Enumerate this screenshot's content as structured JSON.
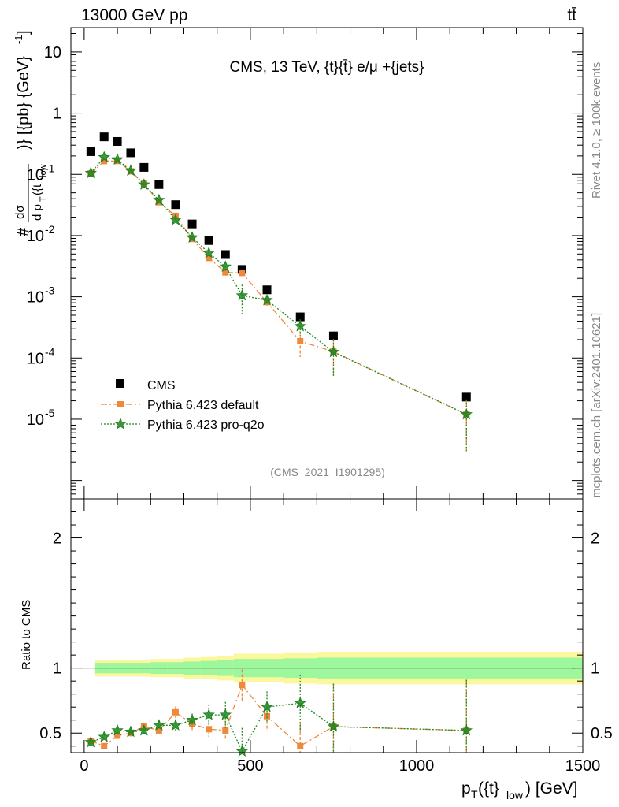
{
  "header": {
    "left": "13000 GeV pp",
    "right": "tt̄"
  },
  "side": {
    "rivet": "Rivet 4.1.0, ≥ 100k events",
    "mcplots": "mcplots.cern.ch [arXiv:2401.10621]"
  },
  "chart_data": {
    "type": "scatter",
    "title": "CMS, 13 TeV, {t}{t̄} e/μ +{jets}",
    "watermark": "(CMS_2021_I1901295)",
    "xlabel": "p_T({t}_low) [GeV]",
    "ylabel_main": "# dσ / d p_T({t_low})} [{pb} {GeV}^-1]",
    "ylabel_ratio": "Ratio to CMS",
    "xlim": [
      -40,
      1500
    ],
    "ylim_main": [
      5e-07,
      25
    ],
    "ylim_ratio": [
      0.35,
      2.3
    ],
    "x_ticks": [
      0,
      500,
      1000,
      1500
    ],
    "y_ticks_main": [
      {
        "value": 10,
        "mantissa": "10",
        "exp": ""
      },
      {
        "value": 1,
        "mantissa": "1",
        "exp": ""
      },
      {
        "value": 0.1,
        "mantissa": "10",
        "exp": "-1"
      },
      {
        "value": 0.01,
        "mantissa": "10",
        "exp": "-2"
      },
      {
        "value": 0.001,
        "mantissa": "10",
        "exp": "-3"
      },
      {
        "value": 0.0001,
        "mantissa": "10",
        "exp": "-4"
      },
      {
        "value": 1e-05,
        "mantissa": "10",
        "exp": "-5"
      }
    ],
    "y_ticks_ratio": [
      {
        "value": 0.5,
        "label": "0.5"
      },
      {
        "value": 1,
        "label": "1"
      },
      {
        "value": 2,
        "label": "2"
      }
    ],
    "bin_edges": [
      0,
      40,
      80,
      120,
      160,
      200,
      250,
      300,
      350,
      400,
      450,
      500,
      600,
      700,
      800,
      1500
    ],
    "bin_centers": [
      20,
      60,
      100,
      140,
      180,
      225,
      275,
      325,
      375,
      425,
      475,
      550,
      650,
      750,
      1150
    ],
    "band_inner": [
      0.04,
      0.04,
      0.04,
      0.04,
      0.04,
      0.045,
      0.045,
      0.05,
      0.055,
      0.06,
      0.07,
      0.07,
      0.075,
      0.08,
      0.08
    ],
    "band_outer": [
      0.065,
      0.065,
      0.065,
      0.065,
      0.065,
      0.07,
      0.07,
      0.08,
      0.085,
      0.095,
      0.11,
      0.11,
      0.12,
      0.125,
      0.125
    ],
    "series": [
      {
        "name": "CMS",
        "color": "#000000",
        "marker": "square",
        "values": [
          0.235,
          0.41,
          0.345,
          0.225,
          0.13,
          0.068,
          0.032,
          0.0155,
          0.0083,
          0.0049,
          0.0028,
          0.0013,
          0.00047,
          0.00023,
          2.3e-05
        ]
      },
      {
        "name": "Pythia 6.423 default",
        "color": "#f0883a",
        "marker": "square-small",
        "line": "dashdot",
        "values": [
          0.103,
          0.165,
          0.165,
          0.112,
          0.071,
          0.035,
          0.021,
          0.0088,
          0.0043,
          0.0025,
          0.00245,
          0.00082,
          0.000188,
          0.000127,
          1.2e-05
        ],
        "ratio": [
          0.44,
          0.4,
          0.48,
          0.5,
          0.55,
          0.52,
          0.66,
          0.57,
          0.53,
          0.52,
          0.87,
          0.63,
          0.4,
          0.55,
          0.52
        ],
        "ratio_err": [
          0.02,
          0.015,
          0.02,
          0.025,
          0.03,
          0.035,
          0.045,
          0.05,
          0.06,
          0.07,
          0.12,
          0.11,
          0.18,
          0.33,
          0.39
        ]
      },
      {
        "name": "Pythia 6.423 pro-q2o",
        "color": "#1e8a1e",
        "marker": "star",
        "line": "dotted",
        "values": [
          0.105,
          0.19,
          0.175,
          0.115,
          0.068,
          0.038,
          0.018,
          0.0093,
          0.0052,
          0.0031,
          0.00105,
          0.00088,
          0.00033,
          0.000125,
          1.2e-05
        ],
        "ratio": [
          0.43,
          0.47,
          0.52,
          0.51,
          0.52,
          0.56,
          0.56,
          0.6,
          0.64,
          0.64,
          0.36,
          0.7,
          0.73,
          0.55,
          0.52
        ],
        "ratio_err": [
          0.02,
          0.02,
          0.02,
          0.025,
          0.03,
          0.035,
          0.045,
          0.05,
          0.08,
          0.1,
          0.18,
          0.12,
          0.22,
          0.33,
          0.39
        ]
      }
    ]
  }
}
